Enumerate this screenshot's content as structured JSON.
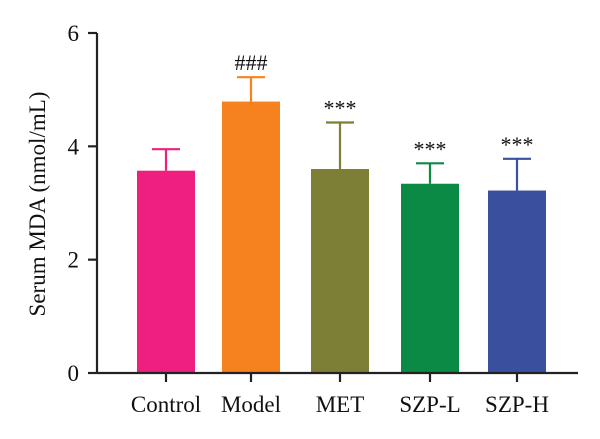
{
  "chart_data": {
    "type": "bar",
    "title": "",
    "xlabel": "",
    "ylabel": "Serum MDA (nmol/mL)",
    "ylim": [
      0,
      6
    ],
    "y_ticks": [
      0,
      2,
      4,
      6
    ],
    "y_tick_labels": [
      "0",
      "2",
      "4",
      "6"
    ],
    "grid": false,
    "legend": "none",
    "categories": [
      "Control",
      "Model",
      "MET",
      "SZP-L",
      "SZP-H"
    ],
    "values": [
      3.57,
      4.79,
      3.6,
      3.34,
      3.22
    ],
    "error_upper": [
      0.38,
      0.43,
      0.82,
      0.36,
      0.56
    ],
    "annotations": [
      "",
      "###",
      "***",
      "***",
      "***"
    ],
    "colors": [
      "#EE1F7E",
      "#F5821F",
      "#7E7F36",
      "#0B8A45",
      "#3B4F9F"
    ]
  }
}
